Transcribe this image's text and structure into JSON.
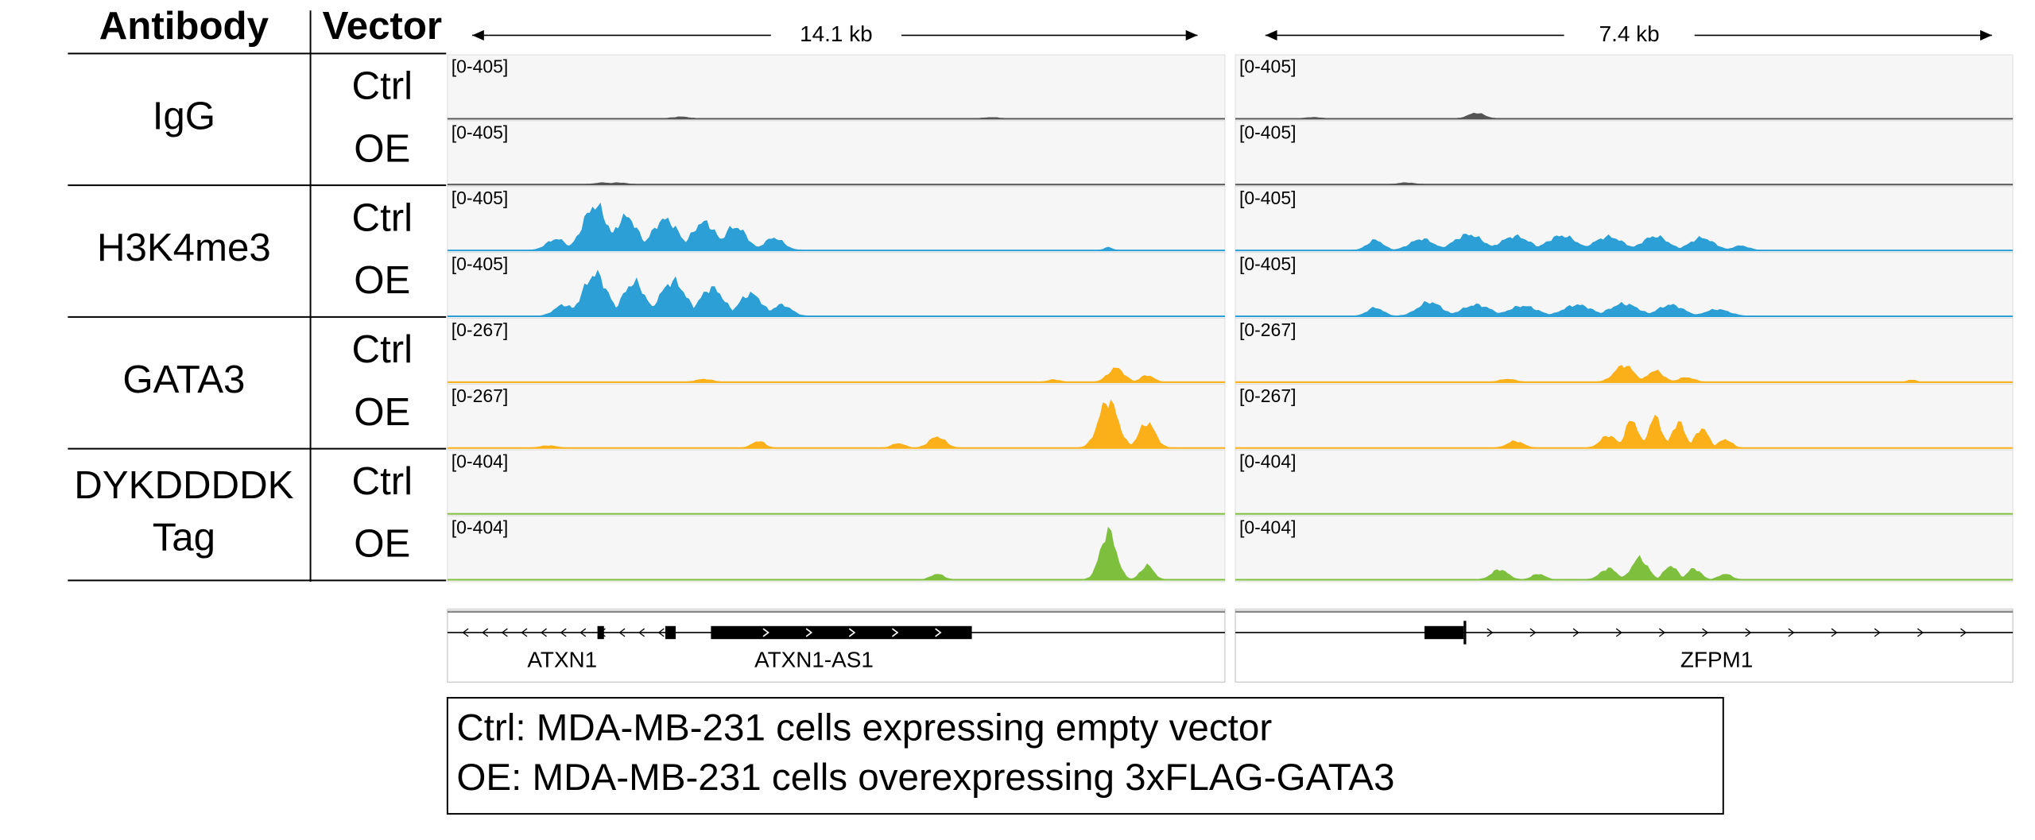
{
  "header": {
    "antibody": "Antibody",
    "vector": "Vector"
  },
  "scale_bars": [
    "14.1 kb",
    "7.4 kb"
  ],
  "rows": [
    {
      "antibody": [
        "IgG"
      ],
      "conditions": [
        "Ctrl",
        "OE"
      ]
    },
    {
      "antibody": [
        "H3K4me3"
      ],
      "conditions": [
        "Ctrl",
        "OE"
      ]
    },
    {
      "antibody": [
        "GATA3"
      ],
      "conditions": [
        "Ctrl",
        "OE"
      ]
    },
    {
      "antibody": [
        "DYKDDDDK",
        "Tag"
      ],
      "conditions": [
        "Ctrl",
        "OE"
      ]
    }
  ],
  "tracks": [
    {
      "range": "[0-405]"
    },
    {
      "range": "[0-405]"
    },
    {
      "range": "[0-405]"
    },
    {
      "range": "[0-405]"
    },
    {
      "range": "[0-267]"
    },
    {
      "range": "[0-267]"
    },
    {
      "range": "[0-404]"
    },
    {
      "range": "[0-404]"
    }
  ],
  "genes": {
    "left": [
      "ATXN1",
      "ATXN1-AS1"
    ],
    "right": [
      "ZFPM1"
    ]
  },
  "legend": [
    "Ctrl: MDA-MB-231 cells expressing empty vector",
    "OE: MDA-MB-231 cells overexpressing 3xFLAG-GATA3"
  ]
}
